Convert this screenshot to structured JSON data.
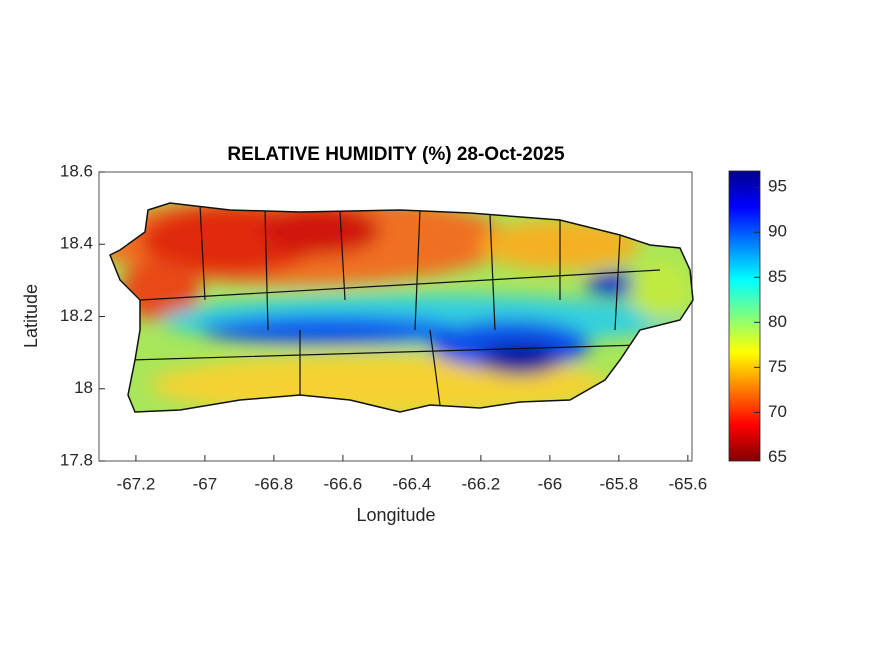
{
  "chart_data": {
    "type": "map",
    "title": "RELATIVE HUMIDITY (%) 28-Oct-2025",
    "x_label": "Longitude",
    "y_label": "Latitude",
    "xlim": [
      -67.307,
      -65.588
    ],
    "xticks": [
      -67.2,
      -67,
      -66.8,
      -66.6,
      -66.4,
      -66.2,
      -66,
      -65.8,
      -65.6
    ],
    "ylim": [
      17.8,
      18.6
    ],
    "yticks": [
      17.8,
      18,
      18.2,
      18.4,
      18.6
    ],
    "colormap": "jet",
    "clim": [
      64.6,
      96.8
    ],
    "cticks": [
      65,
      70,
      75,
      80,
      85,
      90,
      95
    ]
  }
}
